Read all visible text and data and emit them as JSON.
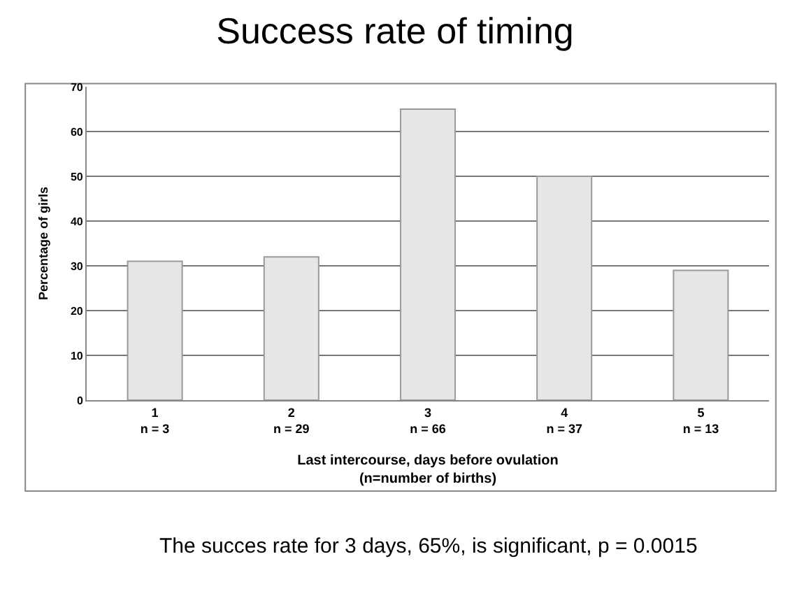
{
  "chart_data": {
    "type": "bar",
    "title": "Success rate of timing",
    "xlabel": "Last intercourse, days before ovulation\n(n=number of births)",
    "ylabel": "Percentage of girls",
    "categories": [
      "1\nn = 3",
      "2\nn = 29",
      "3\nn = 66",
      "4\nn = 37",
      "5\nn = 13"
    ],
    "values": [
      31,
      32,
      65,
      50,
      29
    ],
    "color": "#e6e6e6",
    "ylim": [
      0,
      70
    ],
    "yticks": [
      0,
      10,
      20,
      30,
      40,
      50,
      60,
      70
    ],
    "grid": "y",
    "annotations": [
      "The succes rate for 3 days, 65%, is significant, p = 0.0015"
    ]
  }
}
